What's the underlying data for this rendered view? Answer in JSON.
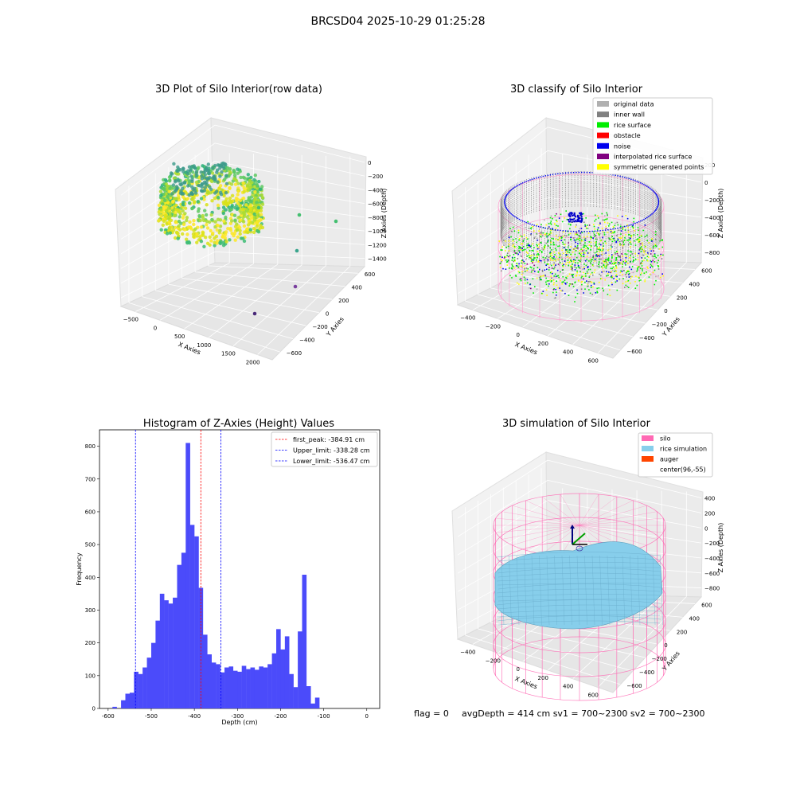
{
  "figure": {
    "title": "BRCSD04 2025-10-29 01:25:28",
    "footer": {
      "flag": "flag = 0",
      "stats": "avgDepth = 414 cm  sv1 = 700~2300  sv2 = 700~2300"
    }
  },
  "panel_raw": {
    "title": "3D Plot of Silo Interior(row data)",
    "x_label": "X Axies",
    "y_label": "Y Axies",
    "z_label": "Z Axies (Depth)",
    "x_ticks": [
      "−500",
      "0",
      "500",
      "1000",
      "1500",
      "2000"
    ],
    "y_ticks": [
      "600",
      "400",
      "200",
      "0",
      "−200",
      "−400",
      "−600"
    ],
    "z_ticks": [
      "0",
      "−200",
      "−400",
      "−600",
      "−800",
      "−1000",
      "−1200",
      "−1400"
    ]
  },
  "panel_classify": {
    "title": "3D classify of Silo Interior",
    "x_label": "X Axies",
    "y_label": "Y Axies",
    "z_label": "Z Axies (Depth)",
    "x_ticks": [
      "−400",
      "−200",
      "0",
      "200",
      "400",
      "600"
    ],
    "y_ticks": [
      "600",
      "400",
      "200",
      "0",
      "−200",
      "−400",
      "−600"
    ],
    "z_ticks": [
      "200",
      "0",
      "−200",
      "−400",
      "−600",
      "−800"
    ],
    "z_tick_partial": "0",
    "legend": [
      {
        "label": "original data",
        "color": "#b0b0b0"
      },
      {
        "label": "inner wall",
        "color": "#808080"
      },
      {
        "label": "rice surface",
        "color": "#00ee00"
      },
      {
        "label": "obstacle",
        "color": "#ff0000"
      },
      {
        "label": "noise",
        "color": "#0000ee"
      },
      {
        "label": "interpolated rice surface",
        "color": "#800080"
      },
      {
        "label": "symmetric generated points",
        "color": "#ffff00"
      }
    ]
  },
  "panel_sim": {
    "title": "3D simulation of Silo Interior",
    "x_label": "X Axies",
    "y_label": "Y Axies",
    "z_label": "Z Axies (Depth)",
    "x_ticks": [
      "−400",
      "−200",
      "0",
      "200",
      "400",
      "600"
    ],
    "y_ticks": [
      "600",
      "400",
      "200",
      "0",
      "−200",
      "−400",
      "−600"
    ],
    "z_ticks": [
      "400",
      "200",
      "0",
      "−200",
      "−400",
      "−600",
      "−800"
    ],
    "legend": [
      {
        "label": "silo",
        "color": "#ff69b4"
      },
      {
        "label": "rice simulation",
        "color": "#87ceeb"
      },
      {
        "label": "auger",
        "color": "#ff4500"
      },
      {
        "label": "center(96,-55)",
        "color": ""
      }
    ]
  },
  "chart_data": [
    {
      "type": "scatter",
      "subtype": "3d",
      "title": "3D Plot of Silo Interior(row data)",
      "xlabel": "X Axies",
      "ylabel": "Y Axies",
      "zlabel": "Z Axies (Depth)",
      "xlim": [
        -700,
        2100
      ],
      "ylim": [
        -700,
        700
      ],
      "zlim": [
        -1500,
        100
      ],
      "grid": true,
      "description_series": "ring of points near z -300 to -600 plus outliers",
      "outliers": [
        {
          "x": 1400,
          "y": 300,
          "z": -650
        },
        {
          "x": 2000,
          "y": 500,
          "z": -700
        },
        {
          "x": 1500,
          "y": -50,
          "z": -1000
        },
        {
          "x": 1500,
          "y": -350,
          "z": -1300
        },
        {
          "x": 1300,
          "y": -600,
          "z": -1450
        }
      ]
    },
    {
      "type": "scatter",
      "subtype": "3d",
      "title": "3D classify of Silo Interior",
      "xlabel": "X Axies",
      "ylabel": "Y Axies",
      "zlabel": "Z Axies (Depth)",
      "xlim": [
        -500,
        700
      ],
      "ylim": [
        -700,
        700
      ],
      "zlim": [
        -900,
        300
      ],
      "grid": true,
      "legend_position": "top-right",
      "series": [
        {
          "name": "original data"
        },
        {
          "name": "inner wall"
        },
        {
          "name": "rice surface"
        },
        {
          "name": "obstacle"
        },
        {
          "name": "noise"
        },
        {
          "name": "interpolated rice surface"
        },
        {
          "name": "symmetric generated points"
        }
      ]
    },
    {
      "type": "bar",
      "subtype": "histogram",
      "title": "Histogram of Z-Axies (Height) Values",
      "xlabel": "Depth (cm)",
      "ylabel": "Frequency",
      "xlim": [
        -620,
        30
      ],
      "ylim": [
        0,
        850
      ],
      "x_ticks": [
        -600,
        -500,
        -400,
        -300,
        -200,
        -100,
        0
      ],
      "y_ticks": [
        0,
        100,
        200,
        300,
        400,
        500,
        600,
        700,
        800
      ],
      "bin_start": -590,
      "bin_width": 10,
      "values": [
        5,
        0,
        25,
        45,
        48,
        112,
        105,
        125,
        155,
        200,
        268,
        350,
        330,
        320,
        338,
        438,
        475,
        810,
        560,
        525,
        368,
        225,
        165,
        140,
        135,
        110,
        125,
        128,
        115,
        112,
        130,
        120,
        125,
        118,
        128,
        125,
        135,
        168,
        242,
        180,
        220,
        105,
        65,
        235,
        408,
        68,
        15,
        33
      ],
      "vlines": [
        {
          "label": "first_peak: -384.91 cm",
          "x": -384.91,
          "color": "#ff0000"
        },
        {
          "label": "Upper_limit: -338.28 cm",
          "x": -338.28,
          "color": "#0000ff"
        },
        {
          "label": "Lower_limit: -536.47 cm",
          "x": -536.47,
          "color": "#0000ff"
        }
      ],
      "bar_color": "#4b4bfa",
      "legend_position": "top-right"
    },
    {
      "type": "area",
      "subtype": "3d-surface",
      "title": "3D simulation of Silo Interior",
      "xlabel": "X Axies",
      "ylabel": "Y Axies",
      "zlabel": "Z Axies (Depth)",
      "xlim": [
        -500,
        700
      ],
      "ylim": [
        -700,
        700
      ],
      "zlim": [
        -900,
        500
      ],
      "grid": true,
      "legend_position": "top-right",
      "series": [
        {
          "name": "silo"
        },
        {
          "name": "rice simulation"
        },
        {
          "name": "auger"
        },
        {
          "name": "center(96,-55)"
        }
      ]
    }
  ]
}
